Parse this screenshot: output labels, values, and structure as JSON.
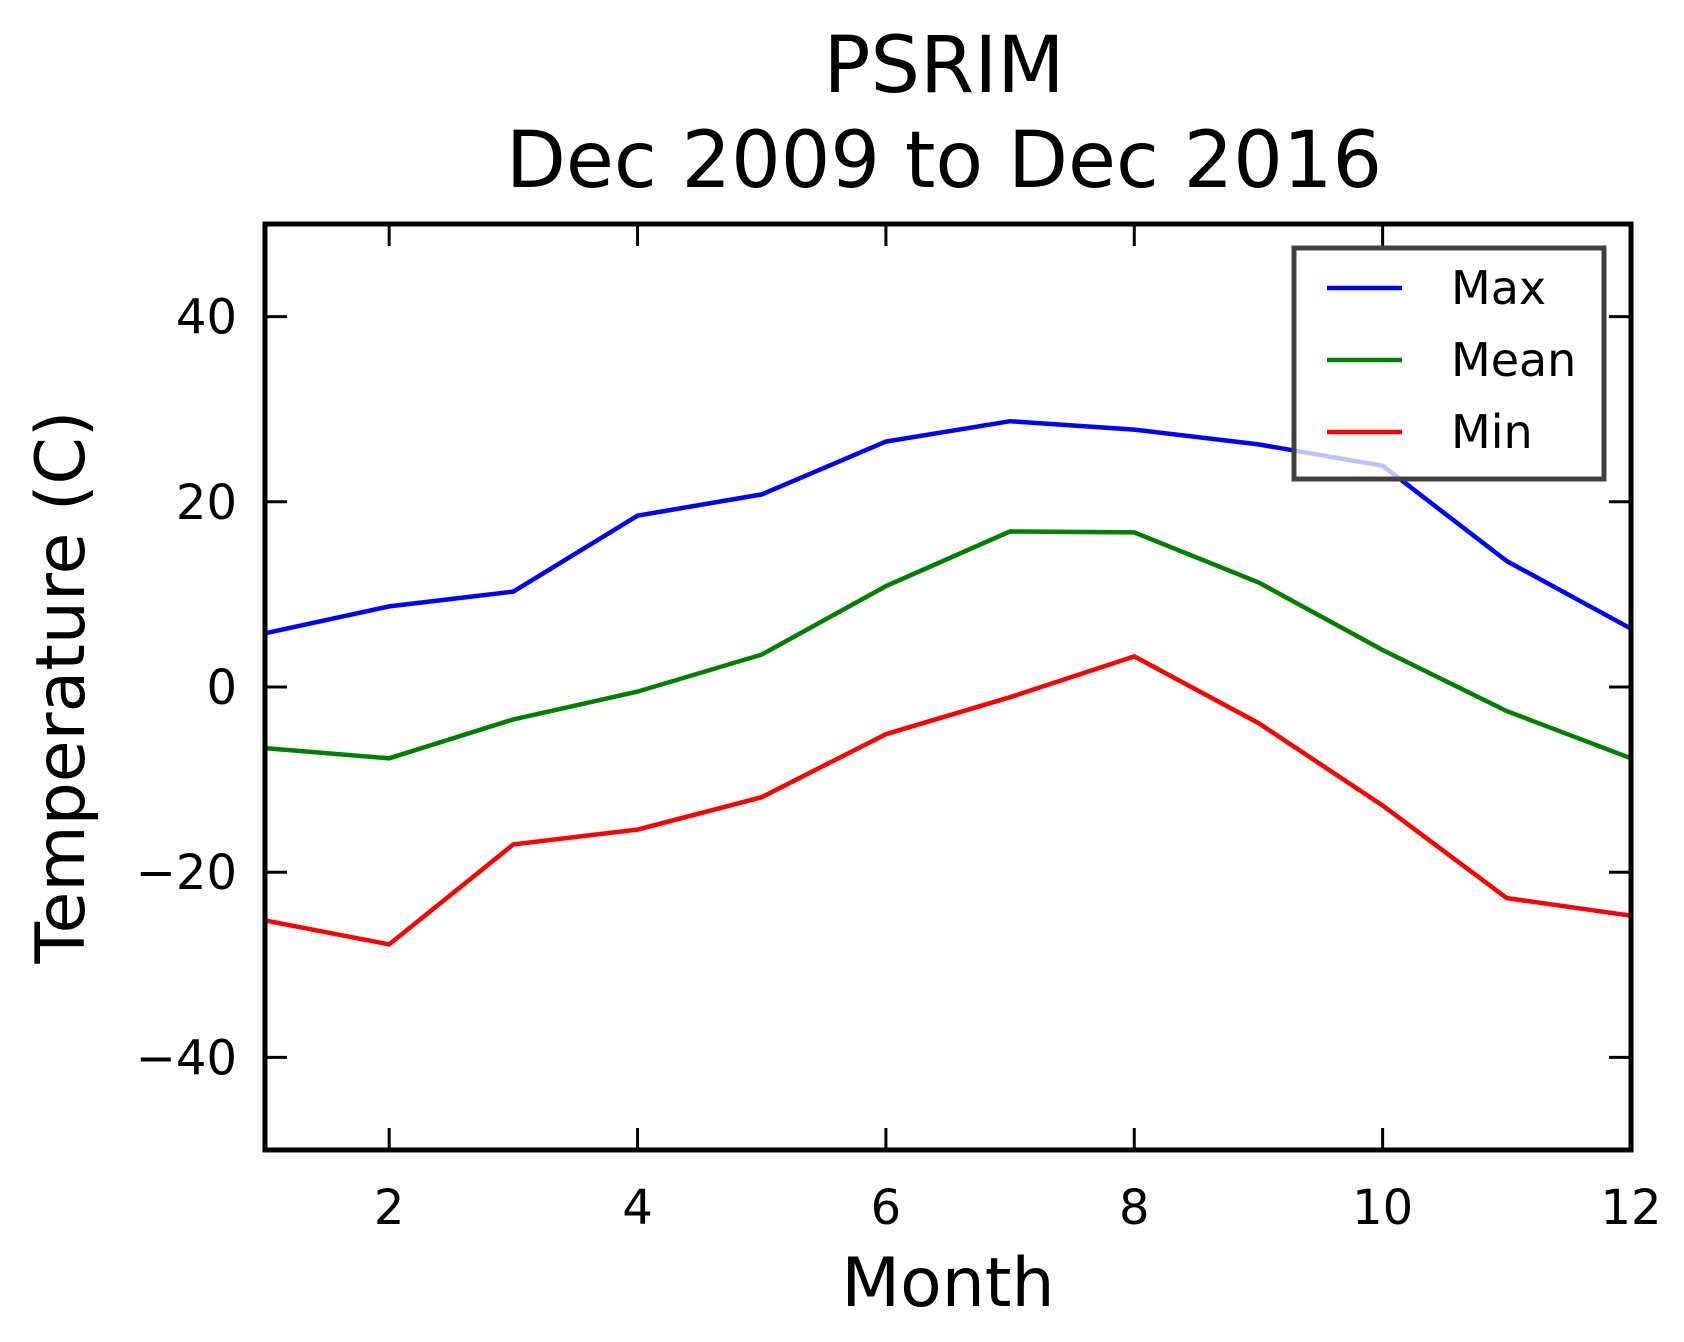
{
  "chart_data": {
    "type": "line",
    "title": "PSRIM",
    "subtitle": "Dec 2009 to Dec 2016",
    "xlabel": "Month",
    "ylabel": "Temperature (C)",
    "xlim": [
      1,
      12
    ],
    "ylim": [
      -50,
      50
    ],
    "xticks": [
      2,
      4,
      6,
      8,
      10,
      12
    ],
    "yticks": [
      -40,
      -20,
      0,
      20,
      40
    ],
    "x": [
      1,
      2,
      3,
      4,
      5,
      6,
      7,
      8,
      9,
      10,
      11,
      12
    ],
    "series": [
      {
        "name": "Max",
        "color": "#0000ff",
        "values": [
          5.8,
          8.7,
          10.3,
          18.5,
          20.8,
          26.5,
          28.7,
          27.8,
          26.2,
          23.9,
          13.6,
          6.3
        ]
      },
      {
        "name": "Mean",
        "color": "#008000",
        "values": [
          -6.6,
          -7.7,
          -3.5,
          -0.5,
          3.5,
          10.9,
          16.8,
          16.7,
          11.3,
          4.0,
          -2.6,
          -7.7
        ]
      },
      {
        "name": "Min",
        "color": "#ff0000",
        "values": [
          -25.2,
          -27.8,
          -17.0,
          -15.4,
          -11.9,
          -5.1,
          -1.1,
          3.3,
          -3.9,
          -12.8,
          -22.8,
          -24.7
        ]
      }
    ],
    "grid": false,
    "legend_position": "top-right"
  }
}
